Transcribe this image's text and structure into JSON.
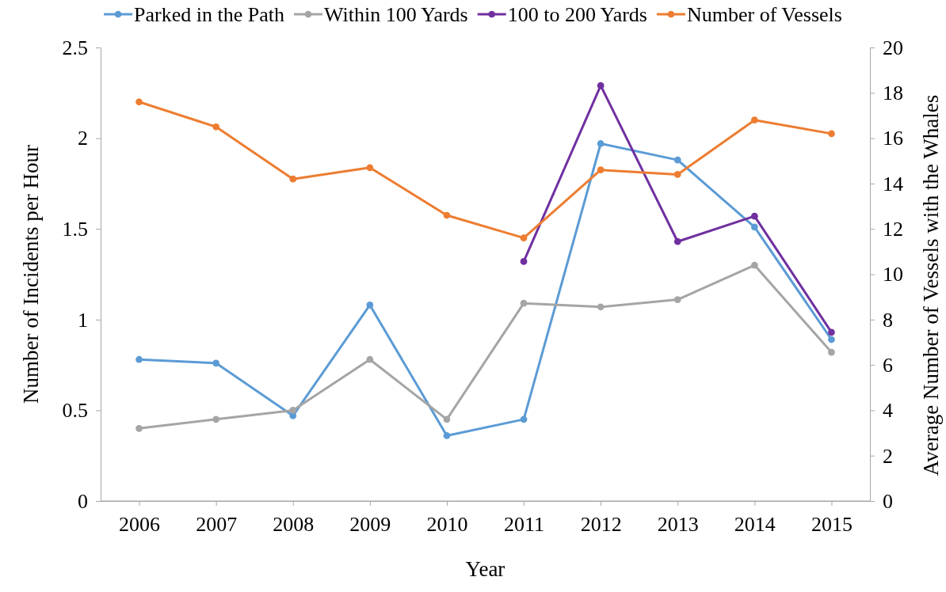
{
  "chart_data": {
    "type": "line",
    "xlabel": "Year",
    "ylabel": "Number of Incidents per Hour",
    "y2label": "Average Number of Vessels with the Whales",
    "categories": [
      "2006",
      "2007",
      "2008",
      "2009",
      "2010",
      "2011",
      "2012",
      "2013",
      "2014",
      "2015"
    ],
    "ylim": [
      0,
      2.5
    ],
    "yticks": [
      0,
      0.5,
      1,
      1.5,
      2,
      2.5
    ],
    "y2lim": [
      0,
      20
    ],
    "y2ticks": [
      0,
      2,
      4,
      6,
      8,
      10,
      12,
      14,
      16,
      18,
      20
    ],
    "legend": "top",
    "marker": "circle",
    "grid": false,
    "series": [
      {
        "name": "Parked in the Path",
        "color": "#5b9bd5",
        "values": [
          0.78,
          0.76,
          0.47,
          1.08,
          0.36,
          0.45,
          1.97,
          1.88,
          1.51,
          0.89
        ]
      },
      {
        "name": "Within 100 Yards",
        "color": "#a5a5a5",
        "values": [
          0.4,
          0.45,
          0.5,
          0.78,
          0.45,
          1.09,
          1.07,
          1.11,
          1.3,
          0.82
        ]
      },
      {
        "name": "100 to 200 Yards",
        "color": "#7030a0",
        "values": [
          null,
          null,
          null,
          null,
          null,
          1.32,
          2.29,
          1.43,
          1.57,
          0.93
        ]
      },
      {
        "name": "Number of Vessels",
        "color": "#ed7d31",
        "axis": "y2",
        "values": [
          17.6,
          16.5,
          14.2,
          14.7,
          12.6,
          11.6,
          14.6,
          14.4,
          16.8,
          16.2
        ]
      }
    ]
  }
}
